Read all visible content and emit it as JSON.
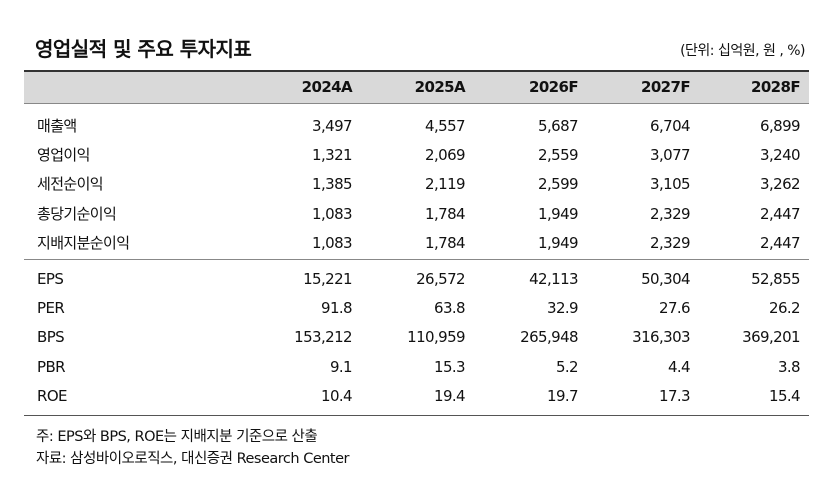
{
  "header": {
    "title": "영업실적 및 주요 투자지표",
    "unit": "(단위: 십억원, 원 , %)"
  },
  "table": {
    "columns": [
      "2024A",
      "2025A",
      "2026F",
      "2027F",
      "2028F"
    ],
    "groups": [
      [
        [
          "매출액",
          "3,497",
          "4,557",
          "5,687",
          "6,704",
          "6,899"
        ],
        [
          "영업이익",
          "1,321",
          "2,069",
          "2,559",
          "3,077",
          "3,240"
        ],
        [
          "세전순이익",
          "1,385",
          "2,119",
          "2,599",
          "3,105",
          "3,262"
        ],
        [
          "총당기순이익",
          "1,083",
          "1,784",
          "1,949",
          "2,329",
          "2,447"
        ],
        [
          "지배지분순이익",
          "1,083",
          "1,784",
          "1,949",
          "2,329",
          "2,447"
        ]
      ],
      [
        [
          "EPS",
          "15,221",
          "26,572",
          "42,113",
          "50,304",
          "52,855"
        ],
        [
          "PER",
          "91.8",
          "63.8",
          "32.9",
          "27.6",
          "26.2"
        ],
        [
          "BPS",
          "153,212",
          "110,959",
          "265,948",
          "316,303",
          "369,201"
        ],
        [
          "PBR",
          "9.1",
          "15.3",
          "5.2",
          "4.4",
          "3.8"
        ],
        [
          "ROE",
          "10.4",
          "19.4",
          "19.7",
          "17.3",
          "15.4"
        ]
      ]
    ]
  },
  "notes": [
    "주: EPS와 BPS, ROE는 지배지분 기준으로 산출",
    "자료: 삼성바이오로직스, 대신증권 Research Center"
  ]
}
